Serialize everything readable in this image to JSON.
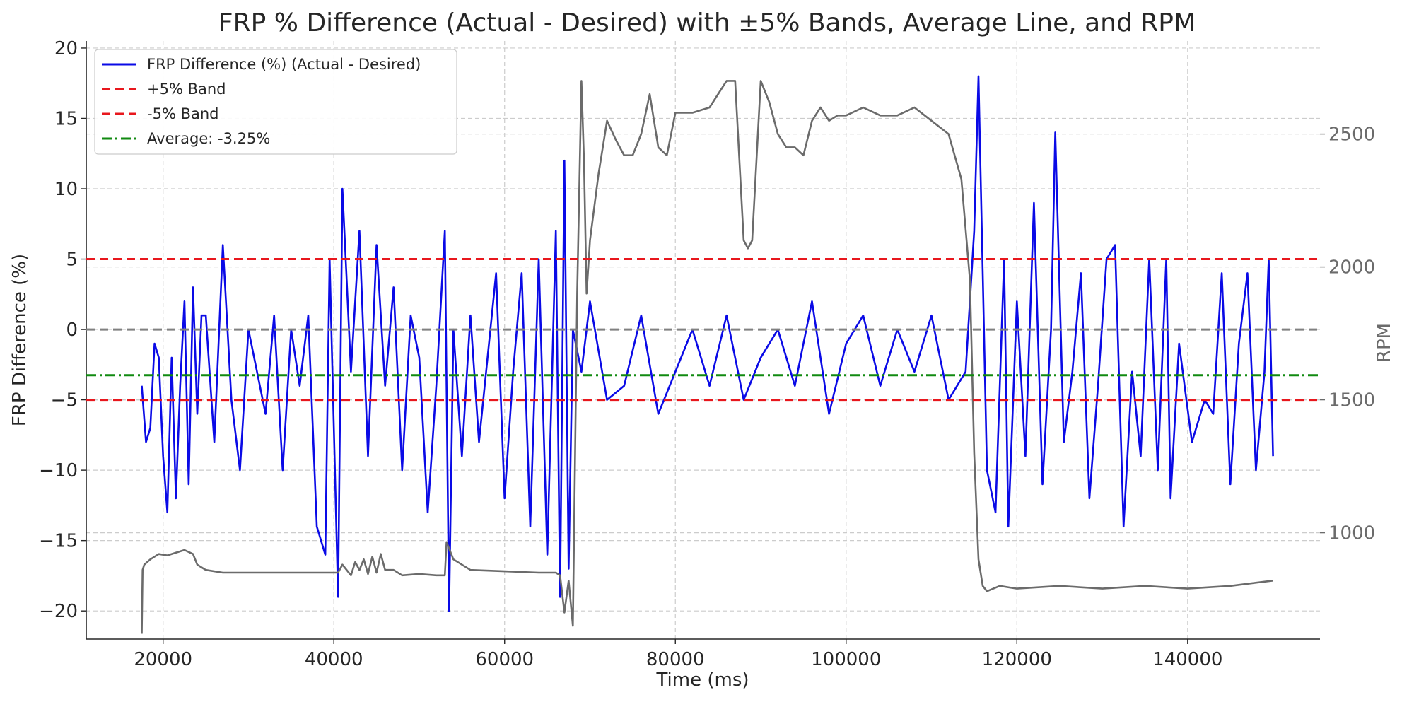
{
  "chart_data": {
    "type": "line",
    "title": "FRP % Difference (Actual - Desired) with ±5% Bands, Average Line, and RPM",
    "xlabel": "Time (ms)",
    "ylabel": "FRP Difference (%)",
    "y2label": "RPM",
    "xlim": [
      11000,
      155500
    ],
    "ylim": [
      -22,
      20.5
    ],
    "y2lim": [
      600,
      2850
    ],
    "xticks": [
      20000,
      40000,
      60000,
      80000,
      100000,
      120000,
      140000
    ],
    "yticks": [
      -20,
      -15,
      -10,
      -5,
      0,
      5,
      10,
      15,
      20
    ],
    "y2ticks": [
      1000,
      1500,
      2000,
      2500
    ],
    "grid": true,
    "legend_position": "top-left",
    "colors": {
      "frp": "#0a0ae6",
      "band": "#e8171d",
      "average": "#118a11",
      "zero": "#808080",
      "rpm": "#6b6b6b",
      "grid": "#cccccc"
    },
    "legend": [
      {
        "label": "FRP Difference (%) (Actual - Desired)",
        "style": "solid",
        "color": "#0a0ae6"
      },
      {
        "label": "+5% Band",
        "style": "dashed",
        "color": "#e8171d"
      },
      {
        "label": "-5% Band",
        "style": "dashed",
        "color": "#e8171d"
      },
      {
        "label": "Average: -3.25%",
        "style": "dashdot",
        "color": "#118a11"
      }
    ],
    "reference_lines": {
      "upper_band": 5,
      "lower_band": -5,
      "average": -3.25,
      "zero": 0
    },
    "series": [
      {
        "name": "FRP Difference (%) (Actual - Desired)",
        "axis": "left",
        "x": [
          17500,
          18000,
          18500,
          19000,
          19500,
          20000,
          20500,
          21000,
          21500,
          22000,
          22500,
          23000,
          23500,
          24000,
          24500,
          25000,
          26000,
          27000,
          28000,
          29000,
          30000,
          31000,
          32000,
          33000,
          34000,
          35000,
          36000,
          37000,
          38000,
          39000,
          39500,
          40500,
          41000,
          42000,
          43000,
          44000,
          45000,
          46000,
          47000,
          48000,
          49000,
          50000,
          51000,
          52000,
          53000,
          53500,
          54000,
          55000,
          56000,
          57000,
          58000,
          59000,
          60000,
          61000,
          62000,
          63000,
          64000,
          65000,
          66000,
          66500,
          67000,
          67500,
          68000,
          69000,
          70000,
          72000,
          74000,
          76000,
          78000,
          80000,
          82000,
          84000,
          86000,
          88000,
          90000,
          92000,
          94000,
          96000,
          98000,
          100000,
          102000,
          104000,
          106000,
          108000,
          110000,
          112000,
          114000,
          115000,
          115500,
          116500,
          117500,
          118500,
          119000,
          120000,
          121000,
          122000,
          123000,
          124000,
          124500,
          125500,
          126500,
          127500,
          128500,
          129500,
          130500,
          131500,
          132500,
          133500,
          134500,
          135500,
          136500,
          137500,
          138000,
          139000,
          140500,
          142000,
          143000,
          144000,
          145000,
          146000,
          147000,
          148000,
          149000,
          149500,
          150000
        ],
        "values": [
          -4,
          -8,
          -7,
          -1,
          -2,
          -9,
          -13,
          -2,
          -12,
          -4,
          2,
          -11,
          3,
          -6,
          1,
          1,
          -8,
          6,
          -5,
          -10,
          0,
          -3,
          -6,
          1,
          -10,
          0,
          -4,
          1,
          -14,
          -16,
          5,
          -19,
          10,
          -3,
          7,
          -9,
          6,
          -4,
          3,
          -10,
          1,
          -2,
          -13,
          -4,
          7,
          -20,
          0,
          -9,
          1,
          -8,
          -2,
          4,
          -12,
          -3,
          4,
          -14,
          5,
          -16,
          7,
          -19,
          12,
          -17,
          0,
          -3,
          2,
          -5,
          -4,
          1,
          -6,
          -3,
          0,
          -4,
          1,
          -5,
          -2,
          0,
          -4,
          2,
          -6,
          -1,
          1,
          -4,
          0,
          -3,
          1,
          -5,
          -3,
          7,
          18,
          -10,
          -13,
          5,
          -14,
          2,
          -9,
          9,
          -11,
          0,
          14,
          -8,
          -3,
          4,
          -12,
          -4,
          5,
          6,
          -14,
          -3,
          -9,
          5,
          -10,
          5,
          -12,
          -1,
          -8,
          -5,
          -6,
          4,
          -11,
          -1,
          4,
          -10,
          -3,
          5,
          -9
        ]
      },
      {
        "name": "RPM",
        "axis": "right",
        "x": [
          17500,
          17600,
          17800,
          18500,
          19500,
          20500,
          21500,
          22500,
          23500,
          24000,
          24500,
          25000,
          27000,
          30000,
          34000,
          38000,
          40000,
          40500,
          41000,
          42000,
          42500,
          43000,
          43500,
          44000,
          44500,
          45000,
          45500,
          46000,
          46500,
          47000,
          48000,
          50000,
          52000,
          53000,
          53200,
          54000,
          56000,
          60000,
          64000,
          66000,
          66500,
          67000,
          67500,
          68000,
          68500,
          69000,
          69300,
          69600,
          70000,
          71000,
          72000,
          73000,
          74000,
          75000,
          76000,
          77000,
          78000,
          79000,
          80000,
          82000,
          84000,
          86000,
          87000,
          88000,
          88500,
          89000,
          90000,
          91000,
          92000,
          93000,
          94000,
          95000,
          96000,
          97000,
          98000,
          99000,
          100000,
          102000,
          104000,
          106000,
          108000,
          110000,
          112000,
          113500,
          114500,
          115000,
          115500,
          116000,
          116500,
          118000,
          120000,
          125000,
          130000,
          135000,
          140000,
          145000,
          150000
        ],
        "values": [
          620,
          860,
          880,
          900,
          920,
          915,
          925,
          935,
          920,
          880,
          870,
          860,
          850,
          850,
          850,
          850,
          850,
          850,
          880,
          840,
          890,
          860,
          900,
          845,
          910,
          850,
          920,
          860,
          860,
          860,
          840,
          845,
          840,
          840,
          965,
          900,
          860,
          855,
          850,
          850,
          840,
          700,
          820,
          650,
          1900,
          2700,
          2400,
          1900,
          2100,
          2350,
          2550,
          2480,
          2420,
          2420,
          2500,
          2650,
          2450,
          2420,
          2580,
          2580,
          2600,
          2700,
          2700,
          2100,
          2070,
          2100,
          2700,
          2620,
          2500,
          2450,
          2450,
          2420,
          2550,
          2600,
          2550,
          2570,
          2570,
          2600,
          2570,
          2570,
          2600,
          2550,
          2500,
          2330,
          1950,
          1300,
          900,
          800,
          780,
          800,
          790,
          800,
          790,
          800,
          790,
          800,
          820
        ]
      }
    ]
  }
}
